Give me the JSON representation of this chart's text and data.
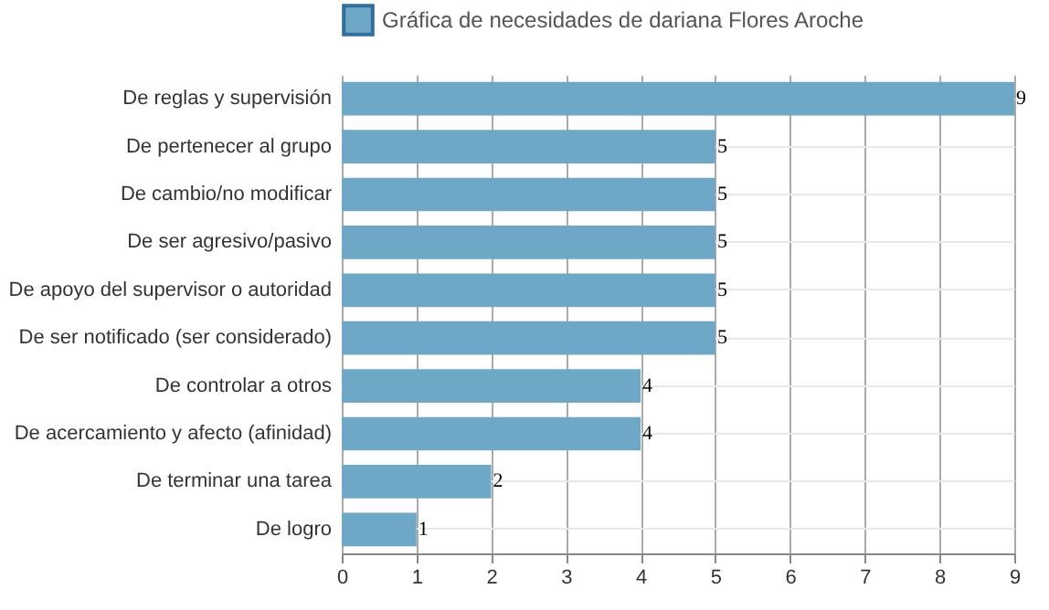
{
  "chart_data": {
    "type": "bar",
    "orientation": "horizontal",
    "categories": [
      "De reglas y supervisión",
      "De pertenecer al grupo",
      "De cambio/no modificar",
      "De ser agresivo/pasivo",
      "De apoyo del supervisor o autoridad",
      "De ser notificado (ser considerado)",
      "De controlar a otros",
      "De acercamiento y afecto (afinidad)",
      "De terminar una tarea",
      "De logro"
    ],
    "series": [
      {
        "name": "Gráfica de necesidades de dariana Flores Aroche",
        "color": "#6fa8c7",
        "values": [
          9,
          5,
          5,
          5,
          5,
          5,
          4,
          4,
          2,
          1
        ]
      }
    ],
    "xlim": [
      0,
      9
    ],
    "xticks": [
      0,
      1,
      2,
      3,
      4,
      5,
      6,
      7,
      8,
      9
    ],
    "grid": true,
    "legend": "top",
    "data_labels": true
  }
}
